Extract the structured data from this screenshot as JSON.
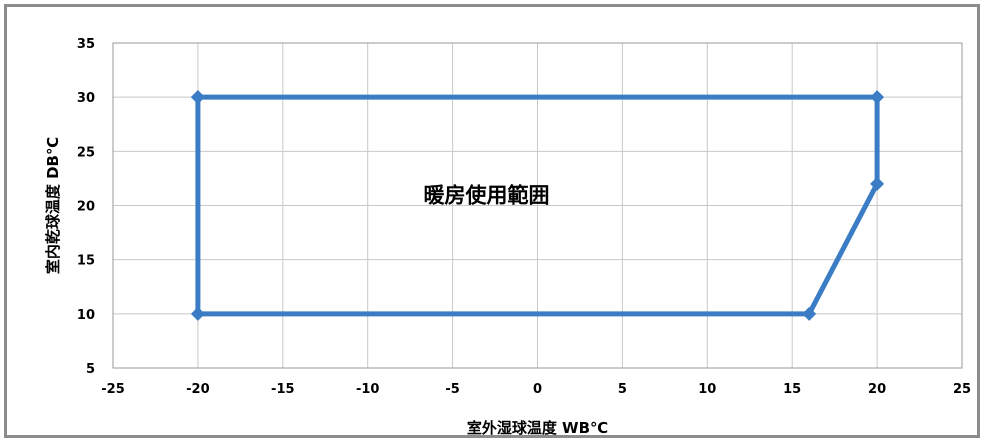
{
  "chart_data": {
    "type": "line",
    "xlabel": "室外湿球温度  WB℃",
    "ylabel": "室内乾球温度  DB℃",
    "xlim": [
      -25,
      25
    ],
    "ylim": [
      5,
      35
    ],
    "xticks": [
      -25,
      -20,
      -15,
      -10,
      -5,
      0,
      5,
      10,
      15,
      20,
      25
    ],
    "yticks": [
      5,
      10,
      15,
      20,
      25,
      30,
      35
    ],
    "grid": true,
    "annotation": {
      "text": "暖房使用範囲",
      "x": -3,
      "y": 21
    },
    "series": [
      {
        "color": "#3b7dc4",
        "points": [
          {
            "x": -20,
            "y": 30
          },
          {
            "x": 20,
            "y": 30
          },
          {
            "x": 20,
            "y": 22
          },
          {
            "x": 16,
            "y": 10
          },
          {
            "x": -20,
            "y": 10
          },
          {
            "x": -20,
            "y": 30
          }
        ]
      }
    ]
  }
}
